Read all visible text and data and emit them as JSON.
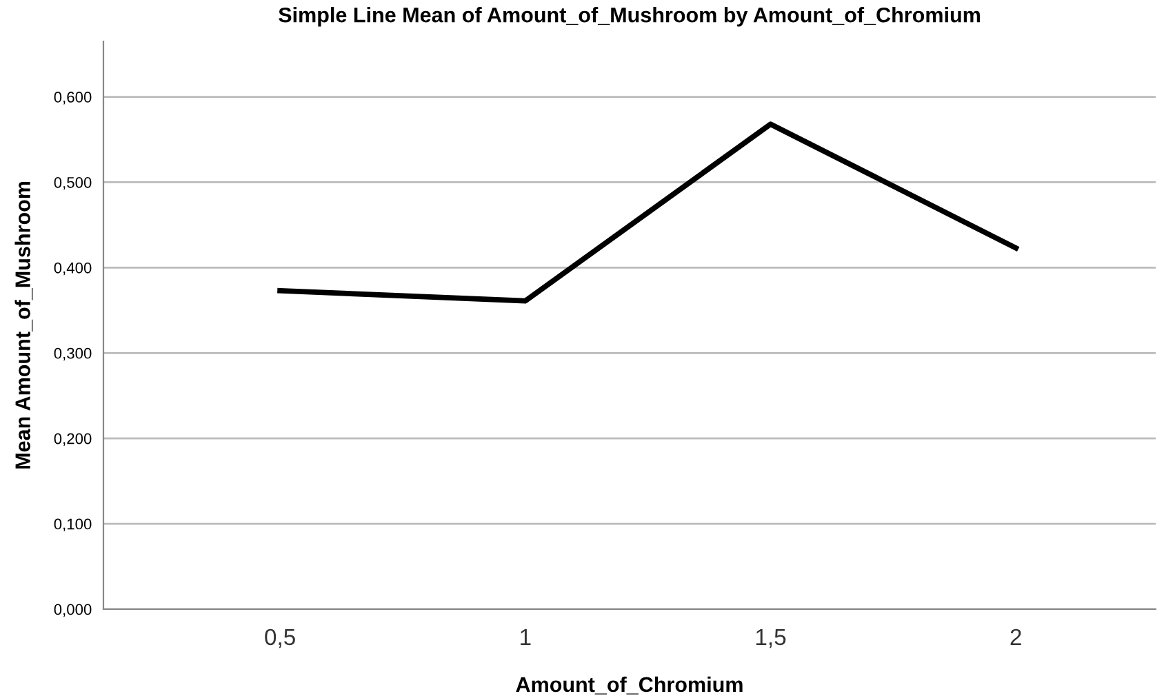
{
  "chart_data": {
    "type": "line",
    "title": "Simple Line Mean of Amount_of_Mushroom by Amount_of_Chromium",
    "xlabel": "Amount_of_Chromium",
    "ylabel": "Mean Amount_of_Mushroom",
    "categories": [
      "0,5",
      "1",
      "1,5",
      "2"
    ],
    "series": [
      {
        "color": "#000000",
        "values": [
          0.373,
          0.361,
          0.568,
          0.423
        ]
      }
    ],
    "ylim": [
      0,
      0.665
    ],
    "yticks": [
      {
        "value": 0,
        "label": "0,000"
      },
      {
        "value": 0.1,
        "label": "0,100"
      },
      {
        "value": 0.2,
        "label": "0,200"
      },
      {
        "value": 0.3,
        "label": "0,300"
      },
      {
        "value": 0.4,
        "label": "0,400"
      },
      {
        "value": 0.5,
        "label": "0,500"
      },
      {
        "value": 0.6,
        "label": "0,600"
      }
    ],
    "grid": "y",
    "marker": "none",
    "line_style": "solid",
    "legend": false
  }
}
